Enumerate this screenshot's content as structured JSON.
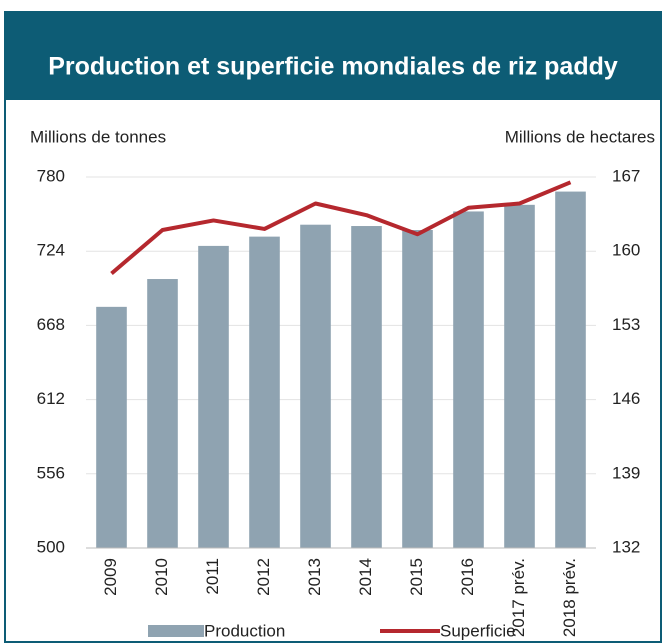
{
  "chart_data": {
    "type": "bar_line",
    "title": "Production et superficie mondiales de riz paddy",
    "ylabel": "Millions de tonnes",
    "y2label": "Millions de hectares",
    "categories": [
      "2009",
      "2010",
      "2011",
      "2012",
      "2013",
      "2014",
      "2015",
      "2016",
      "2017 prév.",
      "2018 prév."
    ],
    "series": [
      {
        "name": "Production",
        "type": "bar",
        "color": "#8fa3b1",
        "values": [
          682,
          703,
          728,
          735,
          744,
          743,
          740,
          754,
          759,
          769
        ]
      },
      {
        "name": "Superficie",
        "type": "line",
        "axis": "y2",
        "color": "#b5282e",
        "values": [
          157.9,
          162.0,
          162.9,
          162.1,
          164.5,
          163.4,
          161.6,
          164.1,
          164.5,
          166.5
        ]
      }
    ],
    "ylim": [
      500,
      780
    ],
    "yticks": [
      500,
      556,
      612,
      668,
      724,
      780
    ],
    "y2lim": [
      132,
      167
    ],
    "y2ticks": [
      132,
      139,
      146,
      153,
      160,
      167
    ],
    "grid": true,
    "legend": "bottom"
  }
}
